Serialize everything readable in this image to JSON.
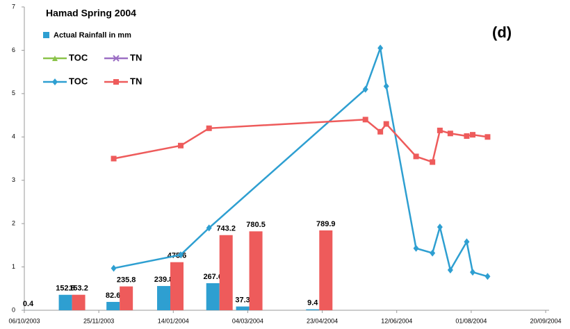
{
  "chart_data": {
    "type": "combo",
    "title": "Hamad Spring 2004",
    "annotation": "(d)",
    "xlim": [
      "06/10/2003",
      "20/09/2004"
    ],
    "xticks": [
      "06/10/2003",
      "25/11/2003",
      "14/01/2004",
      "04/03/2004",
      "23/04/2004",
      "12/06/2004",
      "01/08/2004",
      "20/09/2004"
    ],
    "ylim": [
      0,
      7
    ],
    "yticks": [
      0,
      1,
      2,
      3,
      4,
      5,
      6,
      7
    ],
    "y2lim": [
      0,
      3000
    ],
    "series": [
      {
        "name": "Actual Rainfall in mm",
        "type": "bar",
        "color": "#2e9fd1",
        "axis": "y2",
        "x": [
          "13/10/2003",
          "07/11/2003",
          "09/12/2003",
          "12/01/2004",
          "14/02/2004",
          "05/03/2004",
          "21/04/2004"
        ],
        "values": [
          0.4,
          152.8,
          82.6,
          239.8,
          267.6,
          37.3,
          9.4
        ]
      },
      {
        "type": "bar",
        "color": "#ee5b5b",
        "axis": "y2",
        "x": [
          "13/10/2003",
          "07/11/2003",
          "09/12/2003",
          "12/01/2004",
          "14/02/2004",
          "05/03/2004",
          "21/04/2004"
        ],
        "values": [
          null,
          153.2,
          235.8,
          475.6,
          743.2,
          780.5,
          789.9
        ]
      },
      {
        "name": "TOC",
        "type": "line",
        "color": "#8bc34a",
        "marker": "triangle",
        "x": [],
        "values": []
      },
      {
        "name": "TN",
        "type": "line",
        "color": "#9c6fc4",
        "marker": "cross",
        "x": [],
        "values": []
      },
      {
        "name": "TOC",
        "type": "line",
        "color": "#2e9fd1",
        "marker": "diamond",
        "x": [
          "05/12/2003",
          "19/01/2004",
          "07/02/2004",
          "22/05/2004",
          "01/06/2004",
          "05/06/2004",
          "25/06/2004",
          "06/07/2004",
          "11/07/2004",
          "18/07/2004",
          "29/07/2004",
          "02/08/2004",
          "12/08/2004"
        ],
        "values": [
          0.97,
          1.28,
          1.9,
          5.1,
          6.05,
          5.17,
          1.43,
          1.32,
          1.92,
          0.93,
          1.58,
          0.88,
          0.78
        ]
      },
      {
        "name": "TN",
        "type": "line",
        "color": "#ee5b5b",
        "marker": "square",
        "x": [
          "05/12/2003",
          "19/01/2004",
          "07/02/2004",
          "22/05/2004",
          "01/06/2004",
          "05/06/2004",
          "25/06/2004",
          "06/07/2004",
          "11/07/2004",
          "18/07/2004",
          "29/07/2004",
          "02/08/2004",
          "12/08/2004"
        ],
        "values": [
          3.5,
          3.8,
          4.2,
          4.4,
          4.12,
          4.3,
          3.55,
          3.42,
          4.15,
          4.08,
          4.02,
          4.05,
          4.0
        ]
      }
    ]
  }
}
